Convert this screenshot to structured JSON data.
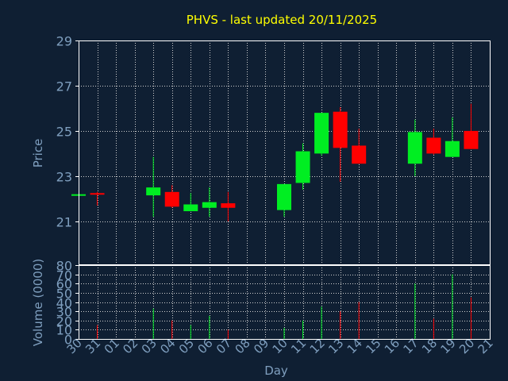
{
  "chart_data": {
    "type": "candlestick",
    "title": "PHVS - last updated 20/11/2025",
    "xlabel": "Day",
    "price_panel": {
      "ylabel": "Price",
      "ylim": [
        19.1,
        29
      ],
      "yticks": [
        21,
        23,
        25,
        27,
        29
      ]
    },
    "volume_panel": {
      "ylabel": "Volume (0000)",
      "ylim": [
        0,
        80
      ],
      "yticks": [
        0,
        10,
        20,
        30,
        40,
        50,
        60,
        70,
        80
      ]
    },
    "x_labels": [
      "30",
      "31",
      "01",
      "02",
      "03",
      "04",
      "05",
      "06",
      "07",
      "08",
      "09",
      "10",
      "11",
      "12",
      "13",
      "14",
      "15",
      "16",
      "17",
      "18",
      "19",
      "20",
      "21"
    ],
    "candles": [
      {
        "x": "30",
        "open": 22.2,
        "close": 22.2,
        "high": 22.2,
        "low": 22.2,
        "volume": 0
      },
      {
        "x": "31",
        "open": 22.25,
        "close": 22.2,
        "high": 22.3,
        "low": 21.7,
        "volume": 15
      },
      {
        "x": "03",
        "open": 22.15,
        "close": 22.5,
        "high": 23.85,
        "low": 21.2,
        "volume": 33
      },
      {
        "x": "04",
        "open": 22.3,
        "close": 21.65,
        "high": 22.6,
        "low": 21.6,
        "volume": 20
      },
      {
        "x": "05",
        "open": 21.45,
        "close": 21.75,
        "high": 22.25,
        "low": 21.45,
        "volume": 15
      },
      {
        "x": "06",
        "open": 21.6,
        "close": 21.85,
        "high": 22.5,
        "low": 21.2,
        "volume": 25
      },
      {
        "x": "07",
        "open": 21.8,
        "close": 21.6,
        "high": 22.3,
        "low": 21.0,
        "volume": 10
      },
      {
        "x": "10",
        "open": 21.5,
        "close": 22.65,
        "high": 22.65,
        "low": 21.2,
        "volume": 12
      },
      {
        "x": "11",
        "open": 22.7,
        "close": 24.1,
        "high": 24.45,
        "low": 22.4,
        "volume": 20
      },
      {
        "x": "12",
        "open": 24.0,
        "close": 25.8,
        "high": 25.8,
        "low": 23.9,
        "volume": 35
      },
      {
        "x": "13",
        "open": 25.85,
        "close": 24.25,
        "high": 26.05,
        "low": 22.75,
        "volume": 30
      },
      {
        "x": "14",
        "open": 24.35,
        "close": 23.55,
        "high": 25.1,
        "low": 23.55,
        "volume": 40
      },
      {
        "x": "17",
        "open": 23.55,
        "close": 24.95,
        "high": 25.5,
        "low": 23.0,
        "volume": 60
      },
      {
        "x": "18",
        "open": 24.7,
        "close": 24.0,
        "high": 25.1,
        "low": 23.95,
        "volume": 22
      },
      {
        "x": "19",
        "open": 23.85,
        "close": 24.55,
        "high": 25.6,
        "low": 23.85,
        "volume": 70
      },
      {
        "x": "20",
        "open": 25.0,
        "close": 24.2,
        "high": 26.2,
        "low": 24.2,
        "volume": 45
      }
    ],
    "grid": true,
    "colors": {
      "background": "#0f1f33",
      "up": "#00ee22",
      "down": "#ff0000",
      "title": "#ffff00",
      "axis_text": "#7f9fbf",
      "grid": "#d0d0d0",
      "frame": "#ffffff"
    }
  }
}
